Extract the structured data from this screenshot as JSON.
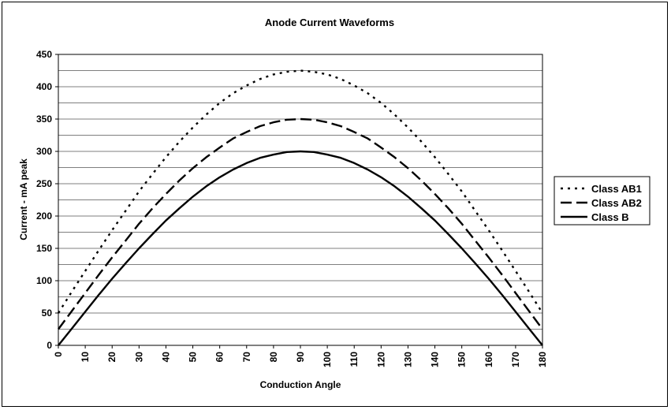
{
  "chart_data": {
    "type": "line",
    "title": "Anode Current  Waveforms",
    "xlabel": "Conduction Angle",
    "ylabel": "Current - mA peak",
    "xlim": [
      0,
      180
    ],
    "ylim": [
      0,
      450
    ],
    "x_ticks": [
      0,
      10,
      20,
      30,
      40,
      50,
      60,
      70,
      80,
      90,
      100,
      110,
      120,
      130,
      140,
      150,
      160,
      170,
      180
    ],
    "y_ticks": [
      0,
      50,
      100,
      150,
      200,
      250,
      300,
      350,
      400,
      450
    ],
    "grid": "horizontal",
    "legend_position": "right",
    "x": [
      0,
      5,
      10,
      15,
      20,
      25,
      30,
      35,
      40,
      45,
      50,
      55,
      60,
      65,
      70,
      75,
      80,
      85,
      90,
      95,
      100,
      105,
      110,
      115,
      120,
      125,
      130,
      135,
      140,
      145,
      150,
      155,
      160,
      165,
      170,
      175,
      180
    ],
    "series": [
      {
        "name": "Class AB1",
        "style": "dotted",
        "values": [
          50,
          83,
          115,
          147,
          178,
          208,
          238,
          265,
          291,
          315,
          337,
          357,
          375,
          390,
          402,
          412,
          419,
          423,
          425,
          423,
          419,
          412,
          402,
          390,
          375,
          357,
          337,
          315,
          291,
          265,
          238,
          208,
          178,
          147,
          115,
          83,
          50
        ]
      },
      {
        "name": "Class AB2",
        "style": "dashed",
        "values": [
          25,
          53,
          81,
          109,
          136,
          162,
          188,
          212,
          234,
          255,
          274,
          291,
          306,
          320,
          330,
          339,
          345,
          349,
          350,
          349,
          345,
          339,
          330,
          320,
          306,
          291,
          274,
          255,
          234,
          212,
          188,
          162,
          136,
          109,
          81,
          53,
          25
        ]
      },
      {
        "name": "Class B",
        "style": "solid",
        "values": [
          0,
          26,
          52,
          78,
          103,
          127,
          150,
          172,
          193,
          212,
          230,
          246,
          260,
          272,
          282,
          290,
          295,
          299,
          300,
          299,
          295,
          290,
          282,
          272,
          260,
          246,
          230,
          212,
          193,
          172,
          150,
          127,
          103,
          78,
          52,
          26,
          0
        ]
      }
    ]
  }
}
